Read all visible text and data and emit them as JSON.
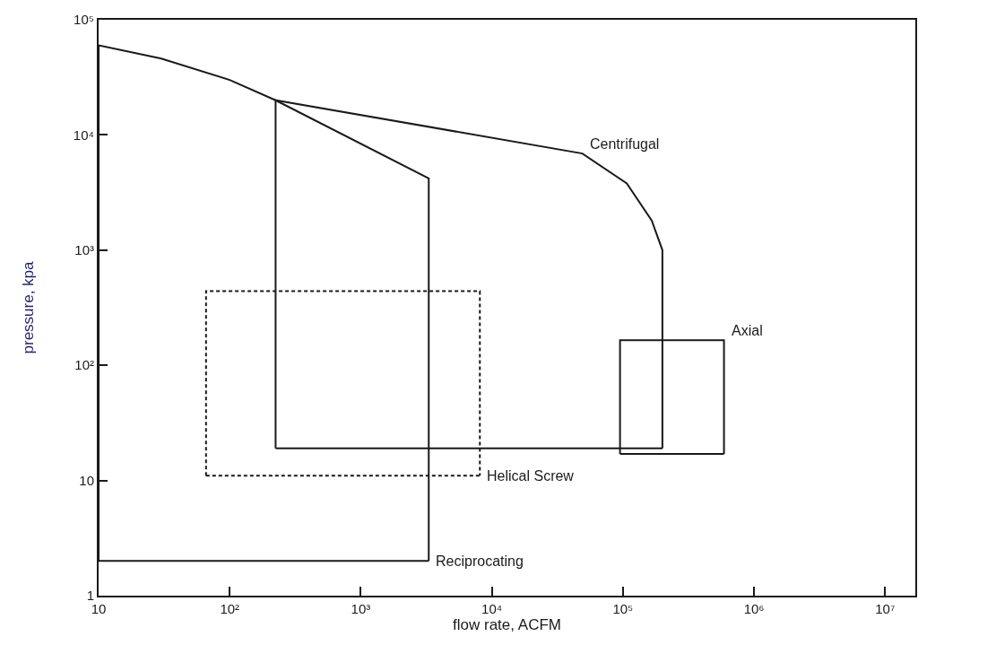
{
  "chart_data": {
    "type": "line",
    "xlabel": "flow rate, ACFM",
    "ylabel": "pressure, kpa",
    "log": "xy",
    "marker": "none",
    "xlim": [
      10,
      17000000
    ],
    "ylim": [
      1,
      100000
    ],
    "xticks": [
      10,
      {
        "value": 100,
        "label": "10²"
      },
      {
        "value": 1000,
        "label": "10³"
      },
      {
        "value": 10000,
        "label": "10⁴"
      },
      {
        "value": 100000,
        "label": "10⁵"
      },
      {
        "value": 1000000,
        "label": "10⁶"
      },
      {
        "value": 10000000,
        "label": "10⁷"
      }
    ],
    "yticks": [
      1,
      10,
      {
        "value": 100,
        "label": "10²"
      },
      {
        "value": 1000,
        "label": "10³"
      },
      {
        "value": 10000,
        "label": "10⁴"
      },
      {
        "value": 100000,
        "label": "10⁵"
      }
    ],
    "series": [
      {
        "color": "#1a1a1a",
        "line_style": "solid",
        "x": [
          10,
          10,
          30,
          100,
          224,
          3300,
          3300
        ],
        "values": [
          2,
          60000,
          46000,
          30000,
          20000,
          4200,
          2
        ]
      },
      {
        "color": "#1a1a1a",
        "line_style": "solid",
        "x": [
          10,
          3300
        ],
        "values": [
          2,
          2
        ]
      },
      {
        "color": "#1a1a1a",
        "line_style": "solid",
        "x": [
          224,
          224,
          49000,
          107000,
          166000,
          200000,
          200000
        ],
        "values": [
          19,
          20000,
          6900,
          3800,
          1800,
          1000,
          19
        ]
      },
      {
        "color": "#1a1a1a",
        "line_style": "solid",
        "x": [
          224,
          200000
        ],
        "values": [
          19,
          19
        ]
      },
      {
        "color": "#1a1a1a",
        "line_style": "dashed",
        "x": [
          66,
          66,
          8100,
          8100
        ],
        "values": [
          11,
          440,
          440,
          11
        ]
      },
      {
        "color": "#1a1a1a",
        "line_style": "dashed",
        "x": [
          66,
          8100
        ],
        "values": [
          11,
          11
        ]
      },
      {
        "color": "#1a1a1a",
        "line_style": "solid",
        "x": [
          95000,
          95000,
          590000,
          590000
        ],
        "values": [
          17,
          165,
          165,
          17
        ]
      },
      {
        "color": "#1a1a1a",
        "line_style": "solid",
        "x": [
          95000,
          590000
        ],
        "values": [
          17,
          17
        ]
      }
    ],
    "annotations": [
      {
        "text": "Centrifugal",
        "x": 49000,
        "y": 6900
      },
      {
        "text": "Axial",
        "x": 590000,
        "y": 165
      },
      {
        "text": "Helical Screw",
        "x": 8100,
        "y": 11
      },
      {
        "text": "Reciprocating",
        "x": 3300,
        "y": 2
      }
    ]
  }
}
